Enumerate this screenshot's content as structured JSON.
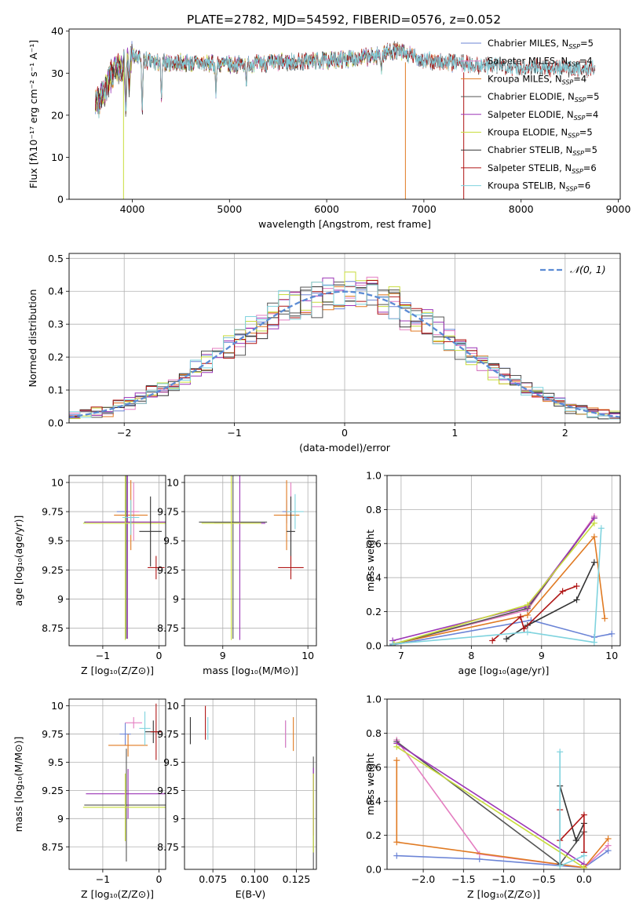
{
  "figure_title": "PLATE=2782, MJD=54592, FIBERID=0576, z=0.052",
  "colors": {
    "chabrier_miles": "#6b84d6",
    "salpeter_miles": "#e47ec0",
    "kroupa_miles": "#e07a22",
    "chabrier_elodie": "#555555",
    "salpeter_elodie": "#9b34b6",
    "kroupa_elodie": "#c8dc3c",
    "chabrier_stelib": "#333333",
    "salpeter_stelib": "#b01616",
    "kroupa_stelib": "#7fd3de",
    "gauss": "#5b8bd4",
    "grid": "#b0b0b0"
  },
  "chart_data": [
    {
      "type": "line",
      "title": "PLATE=2782, MJD=54592, FIBERID=0576, z=0.052",
      "xlabel": "wavelength [Angstrom, rest frame]",
      "ylabel": "Flux [fλ10⁻¹⁷ erg cm⁻² s⁻¹ A⁻¹]",
      "xlim": [
        3350,
        9020
      ],
      "ylim": [
        0,
        40.5
      ],
      "xticks": [
        4000,
        5000,
        6000,
        7000,
        8000,
        9000
      ],
      "yticks": [
        0,
        10,
        20,
        30,
        40
      ],
      "grid": false,
      "legend": "top-right",
      "series": [
        {
          "key": "chabrier_miles",
          "name": "Chabrier MILES, N_SSP=5",
          "x_range": [
            3620,
            7410
          ]
        },
        {
          "key": "salpeter_miles",
          "name": "Salpeter MILES, N_SSP=4",
          "x_range": [
            3620,
            7410
          ]
        },
        {
          "key": "kroupa_miles",
          "name": "Kroupa MILES, N_SSP=4",
          "x_range": [
            3620,
            7410
          ]
        },
        {
          "key": "chabrier_elodie",
          "name": "Chabrier ELODIE, N_SSP=5",
          "x_range": [
            3620,
            6810
          ]
        },
        {
          "key": "salpeter_elodie",
          "name": "Salpeter ELODIE, N_SSP=4",
          "x_range": [
            3620,
            6810
          ]
        },
        {
          "key": "kroupa_elodie",
          "name": "Kroupa ELODIE, N_SSP=5",
          "x_range": [
            3620,
            6810
          ]
        },
        {
          "key": "chabrier_stelib",
          "name": "Chabrier STELIB, N_SSP=5",
          "x_range": [
            3620,
            8760
          ]
        },
        {
          "key": "salpeter_stelib",
          "name": "Salpeter STELIB, N_SSP=6",
          "x_range": [
            3620,
            8760
          ]
        },
        {
          "key": "kroupa_stelib",
          "name": "Kroupa STELIB, N_SSP=6",
          "x_range": [
            3620,
            8760
          ]
        }
      ],
      "continuum": [
        [
          3620,
          22
        ],
        [
          3700,
          25
        ],
        [
          3800,
          30
        ],
        [
          3900,
          32
        ],
        [
          4000,
          34
        ],
        [
          4200,
          32.5
        ],
        [
          4500,
          32.5
        ],
        [
          5000,
          32
        ],
        [
          5500,
          32.5
        ],
        [
          6000,
          33
        ],
        [
          6500,
          34
        ],
        [
          6700,
          35.5
        ],
        [
          7000,
          33
        ],
        [
          7500,
          32
        ],
        [
          8000,
          31.5
        ],
        [
          8760,
          31
        ]
      ],
      "absorption_dips": [
        [
          3934,
          11
        ],
        [
          3969,
          6
        ],
        [
          4102,
          12
        ],
        [
          4300,
          8
        ],
        [
          4861,
          6
        ],
        [
          5175,
          4
        ],
        [
          6563,
          3
        ]
      ],
      "dropouts": [
        [
          3910,
          0
        ],
        [
          6810,
          0
        ],
        [
          7410,
          0
        ]
      ]
    },
    {
      "type": "line",
      "xlabel": "(data-model)/error",
      "ylabel": "Normed distribution",
      "xlim": [
        -2.5,
        2.5
      ],
      "ylim": [
        0,
        0.515
      ],
      "xticks": [
        -2,
        -1,
        0,
        1,
        2
      ],
      "yticks": [
        0.0,
        0.1,
        0.2,
        0.3,
        0.4,
        0.5
      ],
      "grid": true,
      "legend": "top-right",
      "bin_width": 0.1,
      "gaussian": {
        "name": "𝒩(0, 1)",
        "mu": 0,
        "sigma": 1
      }
    },
    {
      "type": "scatter",
      "xlabel": "Z [log₁₀(Z/Z⊙)]",
      "ylabel": "age  [log₁₀(age/yr)]",
      "xlim": [
        -1.6,
        0.12
      ],
      "ylim": [
        8.6,
        10.06
      ],
      "xticks": [
        -1,
        0
      ],
      "yticks": [
        8.75,
        9.0,
        9.25,
        9.5,
        9.75,
        10.0
      ],
      "grid": true,
      "points": [
        {
          "key": "chabrier_miles",
          "x": -0.6,
          "y": 9.75,
          "xerr": 0.15,
          "yerr": 0.1
        },
        {
          "key": "salpeter_miles",
          "x": -0.45,
          "y": 9.75,
          "xerr": 0.1,
          "yerr": 0.25
        },
        {
          "key": "kroupa_miles",
          "x": -0.5,
          "y": 9.72,
          "xerr": 0.3,
          "yerr": 0.3
        },
        {
          "key": "chabrier_elodie",
          "x": -0.58,
          "y": 9.66,
          "xerr": 0.75,
          "yerr": 1.0
        },
        {
          "key": "salpeter_elodie",
          "x": -0.56,
          "y": 9.66,
          "xerr": 0.75,
          "yerr": 1.0
        },
        {
          "key": "kroupa_elodie",
          "x": -0.6,
          "y": 9.65,
          "xerr": 0.75,
          "yerr": 1.0
        },
        {
          "key": "chabrier_stelib",
          "x": -0.15,
          "y": 9.58,
          "xerr": 0.2,
          "yerr": 0.3
        },
        {
          "key": "salpeter_stelib",
          "x": -0.05,
          "y": 9.27,
          "xerr": 0.15,
          "yerr": 0.1
        },
        {
          "key": "kroupa_stelib",
          "x": -0.5,
          "y": 9.7,
          "xerr": 0.15,
          "yerr": 0.15
        }
      ]
    },
    {
      "type": "scatter",
      "xlabel": "mass [log₁₀(M/M⊙)]",
      "xlim": [
        8.55,
        10.1
      ],
      "ylim": [
        8.6,
        10.06
      ],
      "xticks": [
        9,
        10
      ],
      "yticks": [
        8.75,
        9.0,
        9.25,
        9.5,
        9.75,
        10.0
      ],
      "grid": true,
      "points": [
        {
          "key": "chabrier_miles",
          "x": 9.75,
          "y": 9.75,
          "xerr": 0.05,
          "yerr": 0.1
        },
        {
          "key": "salpeter_miles",
          "x": 9.8,
          "y": 9.75,
          "xerr": 0.05,
          "yerr": 0.25
        },
        {
          "key": "kroupa_miles",
          "x": 9.75,
          "y": 9.72,
          "xerr": 0.15,
          "yerr": 0.3
        },
        {
          "key": "chabrier_elodie",
          "x": 9.12,
          "y": 9.66,
          "xerr": 0.4,
          "yerr": 1.0
        },
        {
          "key": "salpeter_elodie",
          "x": 9.2,
          "y": 9.65,
          "xerr": 0.3,
          "yerr": 1.0
        },
        {
          "key": "kroupa_elodie",
          "x": 9.1,
          "y": 9.65,
          "xerr": 0.35,
          "yerr": 1.0
        },
        {
          "key": "chabrier_stelib",
          "x": 9.8,
          "y": 9.58,
          "xerr": 0.05,
          "yerr": 0.3
        },
        {
          "key": "salpeter_stelib",
          "x": 9.8,
          "y": 9.27,
          "xerr": 0.15,
          "yerr": 0.1
        },
        {
          "key": "kroupa_stelib",
          "x": 9.85,
          "y": 9.75,
          "xerr": 0.1,
          "yerr": 0.15
        }
      ]
    },
    {
      "type": "line",
      "xlabel": "age  [log₁₀(age/yr)]",
      "ylabel": "mass weight",
      "xlim": [
        6.8,
        10.12
      ],
      "ylim": [
        0,
        1.0
      ],
      "xticks": [
        7,
        8,
        9,
        10
      ],
      "yticks": [
        0.0,
        0.2,
        0.4,
        0.6,
        0.8,
        1.0
      ],
      "grid": true,
      "series": [
        {
          "key": "chabrier_miles",
          "x": [
            6.88,
            8.85,
            9.75,
            10.0
          ],
          "y": [
            0.005,
            0.15,
            0.05,
            0.07
          ]
        },
        {
          "key": "salpeter_miles",
          "x": [
            6.88,
            8.8,
            9.75
          ],
          "y": [
            0.01,
            0.21,
            0.76
          ]
        },
        {
          "key": "kroupa_miles",
          "x": [
            6.88,
            8.8,
            9.75,
            9.9
          ],
          "y": [
            0.01,
            0.18,
            0.64,
            0.16
          ]
        },
        {
          "key": "chabrier_elodie",
          "x": [
            6.9,
            8.8,
            9.75
          ],
          "y": [
            0.01,
            0.22,
            0.75
          ]
        },
        {
          "key": "salpeter_elodie",
          "x": [
            6.88,
            8.8,
            9.75
          ],
          "y": [
            0.03,
            0.23,
            0.75
          ]
        },
        {
          "key": "kroupa_elodie",
          "x": [
            6.9,
            8.8,
            9.75
          ],
          "y": [
            0.01,
            0.24,
            0.72
          ]
        },
        {
          "key": "chabrier_stelib",
          "x": [
            8.5,
            8.8,
            9.5,
            9.75
          ],
          "y": [
            0.04,
            0.12,
            0.27,
            0.49
          ]
        },
        {
          "key": "salpeter_stelib",
          "x": [
            8.3,
            8.7,
            8.75,
            9.3,
            9.5
          ],
          "y": [
            0.03,
            0.17,
            0.1,
            0.32,
            0.35
          ]
        },
        {
          "key": "kroupa_stelib",
          "x": [
            6.88,
            8.8,
            9.75,
            9.85
          ],
          "y": [
            0.01,
            0.08,
            0.02,
            0.69
          ]
        }
      ]
    },
    {
      "type": "scatter",
      "xlabel": "Z [log₁₀(Z/Z⊙)]",
      "ylabel": "mass [log₁₀(M/M⊙)]",
      "xlim": [
        -1.6,
        0.12
      ],
      "ylim": [
        8.55,
        10.06
      ],
      "xticks": [
        -1,
        0
      ],
      "yticks": [
        8.75,
        9.0,
        9.25,
        9.5,
        9.75,
        10.0
      ],
      "grid": true,
      "points": [
        {
          "key": "chabrier_miles",
          "x": -0.6,
          "y": 9.75,
          "xerr": 0.1,
          "yerr": 0.1
        },
        {
          "key": "salpeter_miles",
          "x": -0.45,
          "y": 9.85,
          "xerr": 0.15,
          "yerr": 0.05
        },
        {
          "key": "kroupa_miles",
          "x": -0.55,
          "y": 9.65,
          "xerr": 0.35,
          "yerr": 0.1
        },
        {
          "key": "chabrier_elodie",
          "x": -0.58,
          "y": 9.12,
          "xerr": 0.75,
          "yerr": 0.5
        },
        {
          "key": "salpeter_elodie",
          "x": -0.55,
          "y": 9.22,
          "xerr": 0.75,
          "yerr": 0.22
        },
        {
          "key": "kroupa_elodie",
          "x": -0.6,
          "y": 9.1,
          "xerr": 0.75,
          "yerr": 0.3
        },
        {
          "key": "chabrier_stelib",
          "x": -0.1,
          "y": 9.77,
          "xerr": 0.15,
          "yerr": 0.1
        },
        {
          "key": "salpeter_stelib",
          "x": -0.05,
          "y": 9.77,
          "xerr": 0.1,
          "yerr": 0.25
        },
        {
          "key": "kroupa_stelib",
          "x": -0.25,
          "y": 9.8,
          "xerr": 0.1,
          "yerr": 0.15
        }
      ]
    },
    {
      "type": "scatter",
      "xlabel": "E(B-V)",
      "xlim": [
        0.058,
        0.137
      ],
      "ylim": [
        8.55,
        10.06
      ],
      "xticks": [
        0.075,
        0.1,
        0.125
      ],
      "yticks": [
        8.75,
        9.0,
        9.25,
        9.5,
        9.75,
        10.0
      ],
      "grid": true,
      "points": [
        {
          "key": "chabrier_miles",
          "x": 0.1185,
          "y": 9.75,
          "yerr": 0.12
        },
        {
          "key": "salpeter_miles",
          "x": 0.1185,
          "y": 9.75,
          "yerr": 0.12
        },
        {
          "key": "kroupa_miles",
          "x": 0.1232,
          "y": 9.75,
          "yerr": 0.15
        },
        {
          "key": "chabrier_elodie",
          "x": 0.1352,
          "y": 9.05,
          "yerr": 0.5
        },
        {
          "key": "salpeter_elodie",
          "x": 0.1352,
          "y": 9.15,
          "yerr": 0.3
        },
        {
          "key": "kroupa_elodie",
          "x": 0.1352,
          "y": 9.05,
          "yerr": 0.35
        },
        {
          "key": "chabrier_stelib",
          "x": 0.0615,
          "y": 9.78,
          "yerr": 0.12
        },
        {
          "key": "salpeter_stelib",
          "x": 0.0705,
          "y": 9.85,
          "yerr": 0.15
        },
        {
          "key": "kroupa_stelib",
          "x": 0.072,
          "y": 9.8,
          "yerr": 0.1
        }
      ]
    },
    {
      "type": "line",
      "xlabel": "Z [log₁₀(Z/Z⊙)]",
      "ylabel": "mass weight",
      "xlim": [
        -2.45,
        0.45
      ],
      "ylim": [
        0,
        1.0
      ],
      "xticks": [
        -2.0,
        -1.5,
        -1.0,
        -0.5,
        0.0
      ],
      "yticks": [
        0.0,
        0.2,
        0.4,
        0.6,
        0.8,
        1.0
      ],
      "grid": true,
      "series": [
        {
          "key": "chabrier_miles",
          "x": [
            -2.33,
            -1.3,
            0.0,
            0.3
          ],
          "y": [
            0.08,
            0.06,
            0.01,
            0.11
          ]
        },
        {
          "key": "salpeter_miles",
          "x": [
            -2.33,
            -1.3,
            0.0,
            0.3
          ],
          "y": [
            0.76,
            0.09,
            0.01,
            0.14
          ]
        },
        {
          "key": "kroupa_miles",
          "x": [
            -2.33,
            -2.33,
            0.0,
            0.3
          ],
          "y": [
            0.64,
            0.16,
            0.01,
            0.18
          ]
        },
        {
          "key": "chabrier_elodie",
          "x": [
            -2.33,
            -0.3,
            0.0
          ],
          "y": [
            0.75,
            0.03,
            0.22
          ]
        },
        {
          "key": "salpeter_elodie",
          "x": [
            -2.33,
            0.0
          ],
          "y": [
            0.74,
            0.03
          ]
        },
        {
          "key": "kroupa_elodie",
          "x": [
            -2.33,
            0.0
          ],
          "y": [
            0.72,
            0.01
          ]
        },
        {
          "key": "chabrier_stelib",
          "x": [
            -0.3,
            -0.1,
            0.0
          ],
          "y": [
            0.49,
            0.17,
            0.27
          ]
        },
        {
          "key": "salpeter_stelib",
          "x": [
            -0.3,
            -0.3,
            0.0,
            0.0
          ],
          "y": [
            0.35,
            0.17,
            0.32,
            0.1
          ]
        },
        {
          "key": "kroupa_stelib",
          "x": [
            -0.3,
            -0.3,
            0.0
          ],
          "y": [
            0.69,
            0.02,
            0.08
          ]
        }
      ]
    }
  ]
}
